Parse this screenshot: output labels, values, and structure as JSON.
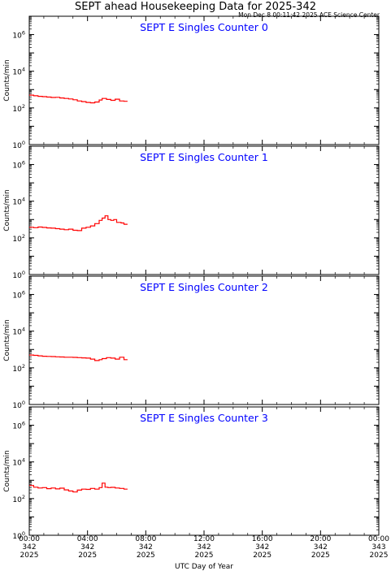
{
  "title": "SEPT ahead Housekeeping Data for 2025-342",
  "timestamp": "Mon Dec  8 00:11:42 2025 ACE Science Center",
  "colors": {
    "series": "#ff0000",
    "panel_title": "#0000ff",
    "axis": "#000000"
  },
  "chart_data": {
    "type": "line",
    "xlabel": "UTC Day of Year",
    "ylabel": "Counts/min",
    "yscale": "log",
    "xlim": [
      0,
      24
    ],
    "ylim_exponent": [
      0,
      7
    ],
    "x_ticks": [
      {
        "value": 0,
        "time": "00:00",
        "doy": "342",
        "year": "2025"
      },
      {
        "value": 4,
        "time": "04:00",
        "doy": "342",
        "year": "2025"
      },
      {
        "value": 8,
        "time": "08:00",
        "doy": "342",
        "year": "2025"
      },
      {
        "value": 12,
        "time": "12:00",
        "doy": "342",
        "year": "2025"
      },
      {
        "value": 16,
        "time": "16:00",
        "doy": "342",
        "year": "2025"
      },
      {
        "value": 20,
        "time": "20:00",
        "doy": "342",
        "year": "2025"
      },
      {
        "value": 24,
        "time": "00:00",
        "doy": "343",
        "year": "2025"
      }
    ],
    "y_ticks": [
      {
        "exp": 0,
        "base": "10",
        "sup": "0"
      },
      {
        "exp": 2,
        "base": "10",
        "sup": "2"
      },
      {
        "exp": 4,
        "base": "10",
        "sup": "4"
      },
      {
        "exp": 6,
        "base": "10",
        "sup": "6"
      }
    ],
    "panels": [
      {
        "title": "SEPT E Singles Counter 0",
        "x": [
          0,
          0.3,
          0.6,
          0.9,
          1.2,
          1.5,
          1.8,
          2.1,
          2.4,
          2.7,
          3.0,
          3.3,
          3.6,
          3.9,
          4.2,
          4.5,
          4.8,
          5.0,
          5.3,
          5.6,
          5.9,
          6.2,
          6.5
        ],
        "y": [
          500,
          460,
          430,
          410,
          390,
          370,
          380,
          350,
          330,
          310,
          280,
          240,
          220,
          200,
          190,
          210,
          270,
          330,
          290,
          260,
          300,
          240,
          230
        ]
      },
      {
        "title": "SEPT E Singles Counter 1",
        "x": [
          0,
          0.3,
          0.6,
          0.9,
          1.2,
          1.5,
          1.8,
          2.1,
          2.4,
          2.7,
          3.0,
          3.3,
          3.6,
          3.9,
          4.2,
          4.5,
          4.8,
          5.0,
          5.2,
          5.4,
          5.6,
          5.8,
          6.0,
          6.3,
          6.5
        ],
        "y": [
          380,
          360,
          390,
          370,
          350,
          340,
          320,
          300,
          280,
          300,
          260,
          250,
          340,
          380,
          450,
          600,
          900,
          1200,
          1600,
          1000,
          900,
          1000,
          700,
          650,
          550
        ]
      },
      {
        "title": "SEPT E Singles Counter 2",
        "x": [
          0,
          0.3,
          0.6,
          0.9,
          1.2,
          1.5,
          1.8,
          2.1,
          2.4,
          2.7,
          3.0,
          3.3,
          3.6,
          3.9,
          4.2,
          4.5,
          4.8,
          5.0,
          5.3,
          5.6,
          5.9,
          6.2,
          6.5
        ],
        "y": [
          500,
          480,
          450,
          430,
          420,
          410,
          400,
          390,
          380,
          380,
          370,
          360,
          350,
          340,
          300,
          250,
          280,
          320,
          360,
          340,
          300,
          380,
          280
        ]
      },
      {
        "title": "SEPT E Singles Counter 3",
        "x": [
          0,
          0.3,
          0.6,
          0.9,
          1.2,
          1.5,
          1.8,
          2.1,
          2.4,
          2.7,
          3.0,
          3.3,
          3.6,
          3.9,
          4.2,
          4.5,
          4.8,
          5.0,
          5.2,
          5.4,
          5.6,
          5.9,
          6.2,
          6.5
        ],
        "y": [
          520,
          420,
          380,
          400,
          350,
          380,
          340,
          370,
          300,
          260,
          230,
          290,
          330,
          320,
          360,
          330,
          400,
          700,
          420,
          400,
          410,
          380,
          360,
          330
        ]
      }
    ]
  }
}
